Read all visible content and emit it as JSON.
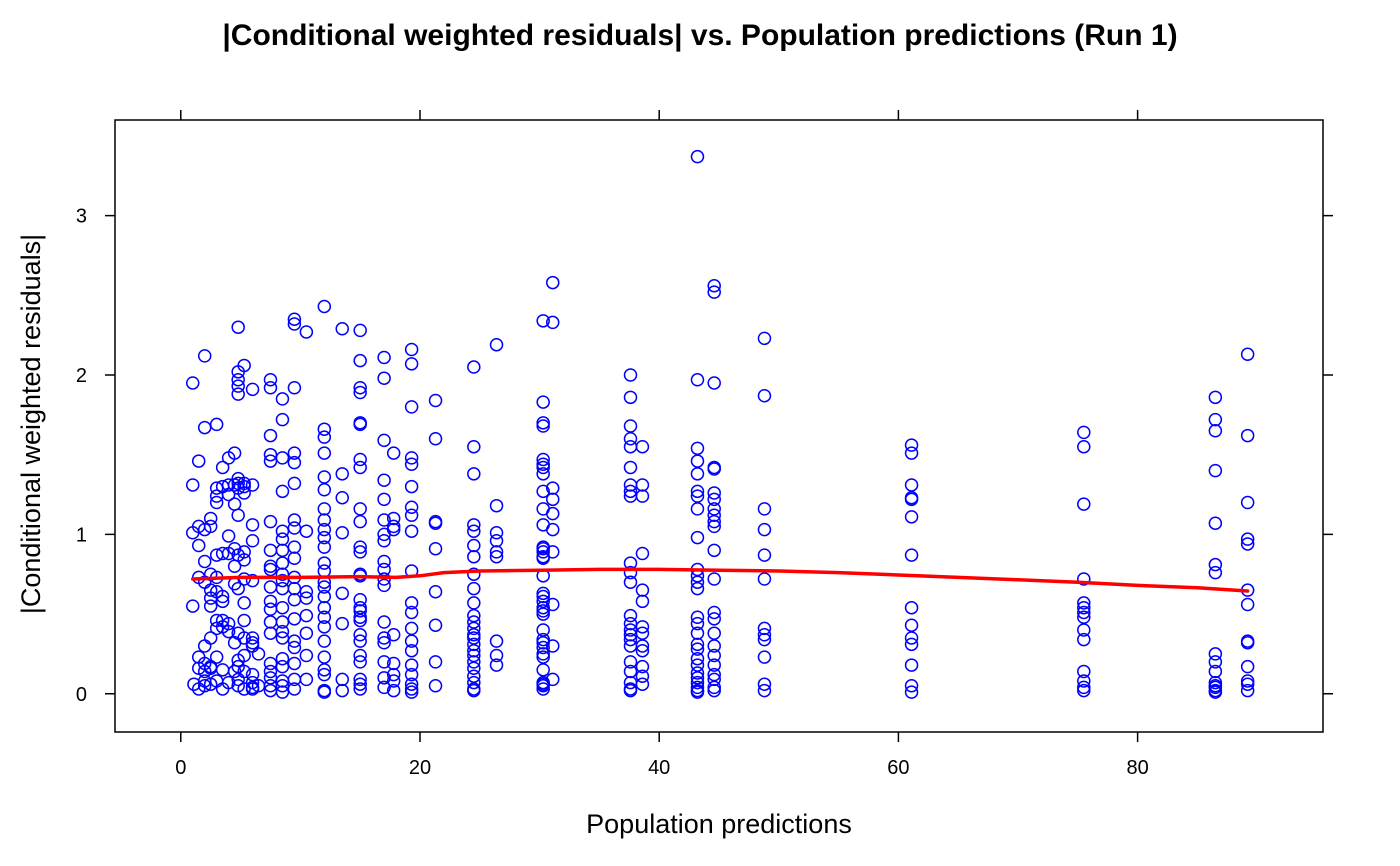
{
  "colors": {
    "points": "#0000ff",
    "smooth": "#ff0000",
    "axis": "#000000",
    "background": "#ffffff"
  },
  "chart_data": {
    "type": "scatter",
    "title": "|Conditional weighted residuals| vs. Population predictions (Run 1)",
    "xlabel": "Population predictions",
    "ylabel": "|Conditional weighted residuals|",
    "xlim": [
      -5.5,
      95.5
    ],
    "ylim": [
      -0.24,
      3.6
    ],
    "xticks": [
      0,
      20,
      40,
      60,
      80
    ],
    "yticks": [
      0,
      1,
      2,
      3
    ],
    "grid": false,
    "legend": "none",
    "series": [
      {
        "kind": "points",
        "x": [
          1.0,
          1.0,
          1.0,
          1.0,
          1.1,
          1.5,
          1.5,
          1.5,
          1.5,
          1.5,
          1.5,
          1.5,
          2.0,
          2.0,
          2.0,
          2.0,
          2.0,
          2.0,
          2.0,
          2.0,
          2.0,
          2.0,
          2.5,
          2.5,
          2.5,
          2.5,
          2.5,
          2.5,
          2.5,
          2.5,
          2.5,
          2.5,
          3.0,
          3.0,
          3.0,
          3.0,
          3.0,
          3.0,
          3.0,
          3.0,
          3.0,
          3.0,
          3.0,
          3.5,
          3.5,
          3.5,
          3.5,
          3.5,
          3.5,
          3.5,
          3.5,
          3.5,
          4.0,
          4.0,
          4.0,
          4.0,
          4.0,
          4.0,
          4.0,
          4.0,
          4.5,
          4.5,
          4.5,
          4.5,
          4.5,
          4.5,
          4.5,
          4.5,
          4.8,
          4.8,
          4.8,
          4.8,
          4.8,
          4.8,
          4.8,
          4.8,
          4.8,
          4.8,
          4.8,
          4.8,
          4.8,
          4.8,
          4.8,
          4.8,
          5.3,
          5.3,
          5.3,
          5.3,
          5.3,
          5.3,
          5.3,
          5.3,
          5.3,
          5.3,
          5.3,
          5.3,
          5.3,
          6.0,
          6.0,
          6.0,
          6.0,
          6.0,
          6.0,
          6.0,
          6.0,
          6.0,
          6.0,
          6.0,
          6.0,
          6.5,
          6.5,
          7.5,
          7.5,
          7.5,
          7.5,
          7.5,
          7.5,
          7.5,
          7.5,
          7.5,
          7.5,
          7.5,
          7.5,
          7.5,
          7.5,
          7.5,
          7.5,
          7.5,
          7.5,
          7.5,
          8.5,
          8.5,
          8.5,
          8.5,
          8.5,
          8.5,
          8.5,
          8.5,
          8.5,
          8.5,
          8.5,
          8.5,
          8.5,
          8.5,
          8.5,
          8.5,
          8.5,
          8.5,
          8.5,
          8.5,
          9.5,
          9.5,
          9.5,
          9.5,
          9.5,
          9.5,
          9.5,
          9.5,
          9.5,
          9.5,
          9.5,
          9.5,
          9.5,
          9.5,
          9.5,
          9.5,
          9.5,
          9.5,
          9.5,
          10.5,
          10.5,
          10.5,
          10.5,
          10.5,
          10.5,
          10.5,
          10.5,
          12.0,
          12.0,
          12.0,
          12.0,
          12.0,
          12.0,
          12.0,
          12.0,
          12.0,
          12.0,
          12.0,
          12.0,
          12.0,
          12.0,
          12.0,
          12.0,
          12.0,
          12.0,
          12.0,
          12.0,
          12.0,
          12.0,
          12.0,
          12.0,
          12.0,
          13.5,
          13.5,
          13.5,
          13.5,
          13.5,
          13.5,
          13.5,
          13.5,
          15.0,
          15.0,
          15.0,
          15.0,
          15.0,
          15.0,
          15.0,
          15.0,
          15.0,
          15.0,
          15.0,
          15.0,
          15.0,
          15.0,
          15.0,
          15.0,
          15.0,
          15.0,
          15.0,
          15.0,
          15.0,
          15.0,
          15.0,
          15.0,
          15.0,
          15.0,
          17.0,
          17.0,
          17.0,
          17.0,
          17.0,
          17.0,
          17.0,
          17.0,
          17.0,
          17.0,
          17.0,
          17.0,
          17.0,
          17.0,
          17.0,
          17.0,
          17.0,
          17.0,
          17.8,
          17.8,
          17.8,
          17.8,
          17.8,
          17.8,
          17.8,
          17.8,
          17.8,
          19.3,
          19.3,
          19.3,
          19.3,
          19.3,
          19.3,
          19.3,
          19.3,
          19.3,
          19.3,
          19.3,
          19.3,
          19.3,
          19.3,
          19.3,
          19.3,
          19.3,
          19.3,
          19.3,
          19.3,
          21.3,
          21.3,
          21.3,
          21.3,
          21.3,
          21.3,
          21.3,
          21.3,
          21.3,
          24.5,
          24.5,
          24.5,
          24.5,
          24.5,
          24.5,
          24.5,
          24.5,
          24.5,
          24.5,
          24.5,
          24.5,
          24.5,
          24.5,
          24.5,
          24.5,
          24.5,
          24.5,
          24.5,
          24.5,
          24.5,
          24.5,
          24.5,
          24.5,
          26.4,
          26.4,
          26.4,
          26.4,
          26.4,
          26.4,
          26.4,
          26.4,
          26.4,
          30.3,
          30.3,
          30.3,
          30.3,
          30.3,
          30.3,
          30.3,
          30.3,
          30.3,
          30.3,
          30.3,
          30.3,
          30.3,
          30.3,
          30.3,
          30.3,
          30.3,
          30.3,
          30.3,
          30.3,
          30.3,
          30.3,
          30.3,
          30.3,
          30.3,
          30.3,
          30.3,
          30.3,
          30.3,
          30.3,
          30.3,
          30.3,
          30.3,
          30.3,
          31.1,
          31.1,
          31.1,
          31.1,
          31.1,
          31.1,
          31.1,
          31.1,
          31.1,
          31.1,
          37.6,
          37.6,
          37.6,
          37.6,
          37.6,
          37.6,
          37.6,
          37.6,
          37.6,
          37.6,
          37.6,
          37.6,
          37.6,
          37.6,
          37.6,
          37.6,
          37.6,
          37.6,
          37.6,
          37.6,
          37.6,
          37.6,
          37.6,
          38.6,
          38.6,
          38.6,
          38.6,
          38.6,
          38.6,
          38.6,
          38.6,
          38.6,
          38.6,
          38.6,
          38.6,
          38.6,
          43.2,
          43.2,
          43.2,
          43.2,
          43.2,
          43.2,
          43.2,
          43.2,
          43.2,
          43.2,
          43.2,
          43.2,
          43.2,
          43.2,
          43.2,
          43.2,
          43.2,
          43.2,
          43.2,
          43.2,
          43.2,
          43.2,
          43.2,
          43.2,
          43.2,
          43.2,
          44.6,
          44.6,
          44.6,
          44.6,
          44.6,
          44.6,
          44.6,
          44.6,
          44.6,
          44.6,
          44.6,
          44.6,
          44.6,
          44.6,
          44.6,
          44.6,
          44.6,
          44.6,
          44.6,
          44.6,
          44.6,
          44.6,
          44.6,
          48.8,
          48.8,
          48.8,
          48.8,
          48.8,
          48.8,
          48.8,
          48.8,
          48.8,
          48.8,
          48.8,
          48.8,
          61.1,
          61.1,
          61.1,
          61.1,
          61.1,
          61.1,
          61.1,
          61.1,
          61.1,
          61.1,
          61.1,
          61.1,
          61.1,
          61.1,
          75.5,
          75.5,
          75.5,
          75.5,
          75.5,
          75.5,
          75.5,
          75.5,
          75.5,
          75.5,
          75.5,
          75.5,
          75.5,
          75.5,
          86.5,
          86.5,
          86.5,
          86.5,
          86.5,
          86.5,
          86.5,
          86.5,
          86.5,
          86.5,
          86.5,
          86.5,
          86.5,
          86.5,
          86.5,
          89.2,
          89.2,
          89.2,
          89.2,
          89.2,
          89.2,
          89.2,
          89.2,
          89.2,
          89.2,
          89.2,
          89.2,
          89.2
        ],
        "y": [
          1.95,
          1.31,
          1.01,
          0.55,
          0.06,
          1.46,
          1.05,
          0.93,
          0.73,
          0.23,
          0.16,
          0.03,
          2.12,
          1.67,
          1.03,
          0.83,
          0.7,
          0.3,
          0.19,
          0.14,
          0.08,
          0.05,
          1.1,
          1.05,
          0.75,
          0.65,
          0.6,
          0.55,
          0.35,
          0.17,
          0.16,
          0.06,
          1.69,
          1.29,
          1.24,
          1.2,
          0.87,
          0.73,
          0.64,
          0.46,
          0.41,
          0.23,
          0.08,
          1.42,
          1.3,
          0.88,
          0.61,
          0.58,
          0.46,
          0.42,
          0.15,
          0.03,
          1.48,
          1.31,
          1.25,
          0.99,
          0.88,
          0.44,
          0.39,
          0.07,
          1.51,
          1.31,
          1.19,
          0.91,
          0.8,
          0.69,
          0.32,
          0.14,
          2.3,
          2.02,
          1.97,
          1.93,
          1.88,
          1.35,
          1.32,
          1.29,
          1.12,
          0.87,
          0.66,
          0.38,
          0.21,
          0.17,
          0.09,
          0.05,
          2.06,
          1.32,
          1.3,
          1.26,
          0.89,
          0.84,
          0.72,
          0.57,
          0.46,
          0.35,
          0.24,
          0.14,
          0.03,
          1.91,
          1.31,
          1.06,
          0.96,
          0.71,
          0.35,
          0.32,
          0.3,
          0.12,
          0.07,
          0.04,
          0.03,
          0.25,
          0.05,
          1.97,
          1.92,
          1.62,
          1.5,
          1.46,
          1.08,
          0.9,
          0.8,
          0.78,
          0.67,
          0.58,
          0.53,
          0.45,
          0.38,
          0.19,
          0.14,
          0.1,
          0.05,
          0.02,
          1.85,
          1.72,
          1.48,
          1.27,
          1.02,
          0.97,
          0.9,
          0.82,
          0.75,
          0.71,
          0.66,
          0.54,
          0.45,
          0.39,
          0.35,
          0.22,
          0.17,
          0.08,
          0.05,
          0.01,
          2.35,
          2.32,
          1.92,
          1.51,
          1.45,
          1.32,
          1.09,
          1.04,
          0.92,
          0.85,
          0.73,
          0.66,
          0.59,
          0.47,
          0.33,
          0.29,
          0.19,
          0.09,
          0.03,
          2.27,
          1.02,
          0.64,
          0.6,
          0.49,
          0.38,
          0.24,
          0.09,
          2.43,
          1.66,
          1.61,
          1.51,
          1.36,
          1.28,
          1.16,
          1.09,
          1.03,
          0.98,
          0.92,
          0.82,
          0.77,
          0.7,
          0.67,
          0.61,
          0.54,
          0.48,
          0.42,
          0.33,
          0.23,
          0.15,
          0.12,
          0.02,
          0.01,
          2.29,
          1.38,
          1.23,
          1.01,
          0.63,
          0.44,
          0.09,
          0.02,
          2.28,
          2.09,
          1.92,
          1.89,
          1.7,
          1.69,
          1.47,
          1.42,
          1.16,
          1.08,
          0.92,
          0.89,
          0.75,
          0.74,
          0.59,
          0.54,
          0.52,
          0.48,
          0.46,
          0.37,
          0.33,
          0.24,
          0.2,
          0.09,
          0.06,
          0.03,
          2.11,
          1.98,
          1.59,
          1.34,
          1.22,
          1.09,
          1.0,
          0.96,
          0.83,
          0.78,
          0.72,
          0.68,
          0.45,
          0.35,
          0.32,
          0.2,
          0.1,
          0.04,
          1.51,
          1.1,
          1.05,
          1.03,
          0.37,
          0.19,
          0.12,
          0.08,
          0.02,
          2.16,
          2.07,
          1.8,
          1.48,
          1.44,
          1.3,
          1.17,
          1.12,
          1.02,
          0.77,
          0.57,
          0.51,
          0.41,
          0.33,
          0.27,
          0.18,
          0.12,
          0.06,
          0.03,
          0.01,
          1.84,
          1.6,
          1.08,
          1.07,
          0.91,
          0.64,
          0.43,
          0.2,
          0.05,
          2.05,
          1.55,
          1.38,
          1.06,
          1.02,
          0.93,
          0.86,
          0.75,
          0.66,
          0.57,
          0.49,
          0.45,
          0.41,
          0.37,
          0.35,
          0.31,
          0.27,
          0.24,
          0.2,
          0.16,
          0.11,
          0.07,
          0.03,
          0.02,
          2.19,
          1.18,
          1.01,
          0.96,
          0.89,
          0.86,
          0.33,
          0.24,
          0.18,
          2.34,
          1.83,
          1.7,
          1.68,
          1.47,
          1.44,
          1.42,
          1.38,
          1.27,
          1.16,
          1.06,
          0.92,
          0.91,
          0.89,
          0.86,
          0.85,
          0.74,
          0.63,
          0.61,
          0.58,
          0.52,
          0.54,
          0.5,
          0.4,
          0.34,
          0.32,
          0.29,
          0.25,
          0.23,
          0.15,
          0.07,
          0.06,
          0.05,
          0.03,
          2.58,
          2.33,
          1.29,
          1.22,
          1.13,
          1.03,
          0.89,
          0.56,
          0.3,
          0.09,
          2.0,
          1.86,
          1.68,
          1.6,
          1.55,
          1.42,
          1.31,
          1.27,
          1.24,
          0.82,
          0.76,
          0.7,
          0.49,
          0.44,
          0.4,
          0.37,
          0.34,
          0.3,
          0.2,
          0.14,
          0.07,
          0.03,
          0.02,
          1.55,
          1.31,
          1.24,
          0.88,
          0.65,
          0.58,
          0.42,
          0.38,
          0.3,
          0.27,
          0.17,
          0.11,
          0.06,
          3.37,
          1.97,
          1.54,
          1.46,
          1.38,
          1.27,
          1.24,
          1.16,
          0.98,
          0.78,
          0.74,
          0.7,
          0.66,
          0.48,
          0.44,
          0.38,
          0.31,
          0.28,
          0.22,
          0.18,
          0.13,
          0.1,
          0.07,
          0.04,
          0.02,
          0.01,
          2.56,
          2.52,
          1.95,
          1.42,
          1.41,
          1.26,
          1.22,
          1.16,
          1.12,
          1.08,
          1.05,
          0.9,
          0.72,
          0.51,
          0.47,
          0.38,
          0.3,
          0.24,
          0.18,
          0.12,
          0.09,
          0.04,
          0.02,
          2.23,
          1.87,
          1.16,
          1.03,
          0.87,
          0.72,
          0.41,
          0.37,
          0.34,
          0.23,
          0.06,
          0.02,
          1.56,
          1.51,
          1.31,
          1.23,
          1.22,
          1.11,
          0.87,
          0.54,
          0.43,
          0.35,
          0.31,
          0.18,
          0.05,
          0.01,
          1.64,
          1.55,
          1.19,
          0.72,
          0.57,
          0.54,
          0.51,
          0.48,
          0.4,
          0.34,
          0.14,
          0.08,
          0.04,
          0.02,
          1.86,
          1.72,
          1.65,
          1.4,
          1.07,
          0.81,
          0.76,
          0.25,
          0.2,
          0.14,
          0.07,
          0.05,
          0.04,
          0.02,
          0.01,
          2.13,
          1.62,
          1.2,
          0.97,
          0.94,
          0.65,
          0.56,
          0.33,
          0.32,
          0.17,
          0.08,
          0.06,
          0.02
        ]
      },
      {
        "kind": "smooth",
        "x": [
          1,
          5,
          10,
          15,
          18,
          20,
          22,
          25,
          30,
          35,
          40,
          45,
          50,
          55,
          60,
          65,
          70,
          75,
          80,
          85,
          89.2
        ],
        "y": [
          0.72,
          0.73,
          0.73,
          0.735,
          0.73,
          0.74,
          0.76,
          0.77,
          0.775,
          0.78,
          0.78,
          0.775,
          0.77,
          0.76,
          0.745,
          0.73,
          0.715,
          0.7,
          0.68,
          0.665,
          0.645
        ]
      }
    ]
  }
}
